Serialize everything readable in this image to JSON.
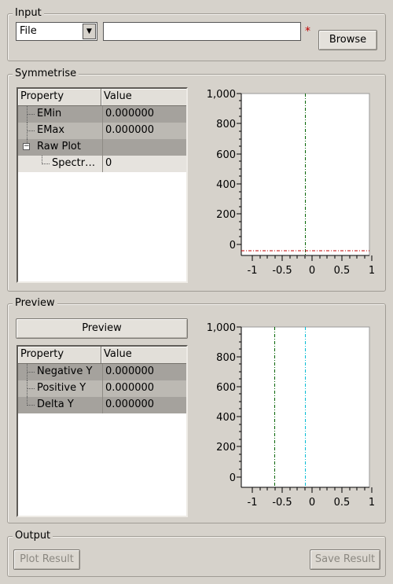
{
  "input": {
    "title": "Input",
    "source_type": "File",
    "path_value": "",
    "required_marker": "*",
    "browse_label": "Browse"
  },
  "symmetrise": {
    "title": "Symmetrise",
    "table": {
      "header_property": "Property",
      "header_value": "Value",
      "rows": [
        {
          "label": "EMin",
          "value": "0.000000"
        },
        {
          "label": "EMax",
          "value": "0.000000"
        },
        {
          "label": "Raw Plot",
          "value": ""
        },
        {
          "label": "Spectr…",
          "value": "0"
        }
      ],
      "expander_symbol": "−"
    },
    "plot": {
      "y_ticks": [
        "1,000",
        "800",
        "600",
        "400",
        "200",
        "0"
      ],
      "x_ticks": [
        "-1",
        "-0.5",
        "0",
        "0.5",
        "1"
      ]
    }
  },
  "preview": {
    "title": "Preview",
    "button_label": "Preview",
    "table": {
      "header_property": "Property",
      "header_value": "Value",
      "rows": [
        {
          "label": "Negative Y",
          "value": "0.000000"
        },
        {
          "label": "Positive Y",
          "value": "0.000000"
        },
        {
          "label": "Delta Y",
          "value": "0.000000"
        }
      ]
    },
    "plot": {
      "y_ticks": [
        "1,000",
        "800",
        "600",
        "400",
        "200",
        "0"
      ],
      "x_ticks": [
        "-1",
        "-0.5",
        "0",
        "0.5",
        "1"
      ]
    }
  },
  "output": {
    "title": "Output",
    "plot_result_label": "Plot Result",
    "save_result_label": "Save Result"
  },
  "colors": {
    "symmetrise_vertical_marker": "#006400",
    "symmetrise_horizontal_marker": "#c00000",
    "preview_negative_marker": "#006400",
    "preview_positive_marker": "#00bcd4"
  }
}
